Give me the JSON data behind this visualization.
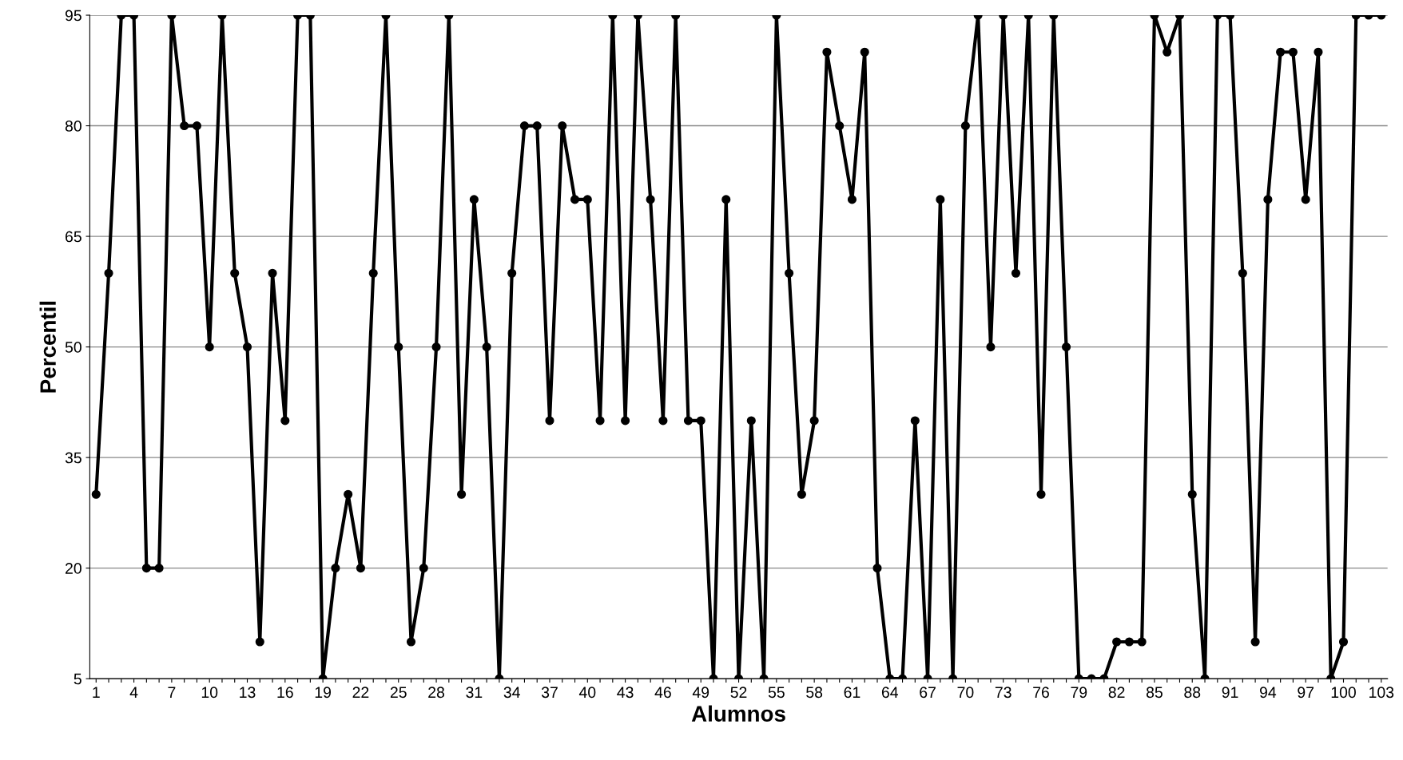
{
  "chart_data": {
    "type": "line",
    "xlabel": "Alumnos",
    "ylabel": "Percentil",
    "categories": [
      "1",
      null,
      null,
      "4",
      null,
      null,
      "7",
      null,
      null,
      "10",
      null,
      null,
      "13",
      null,
      null,
      "16",
      null,
      null,
      "19",
      null,
      null,
      "22",
      null,
      null,
      "25",
      null,
      null,
      "28",
      null,
      null,
      "31",
      null,
      null,
      "34",
      null,
      null,
      "37",
      null,
      null,
      "40",
      null,
      null,
      "43",
      null,
      null,
      "46",
      null,
      null,
      "49",
      null,
      null,
      "52",
      null,
      null,
      "55",
      null,
      null,
      "58",
      null,
      null,
      "61",
      null,
      null,
      "64",
      null,
      null,
      "67",
      null,
      null,
      "70",
      null,
      null,
      "73",
      null,
      null,
      "76",
      null,
      null,
      "79",
      null,
      null,
      "82",
      null,
      null,
      "85",
      null,
      null,
      "88",
      null,
      null,
      "91",
      null,
      null,
      "94",
      null,
      null,
      "97",
      null,
      null,
      "100",
      null,
      null,
      "103"
    ],
    "series": [
      {
        "color": "#000000",
        "values": [
          30,
          60,
          95,
          95,
          20,
          20,
          95,
          80,
          80,
          50,
          95,
          60,
          50,
          10,
          60,
          40,
          95,
          95,
          5,
          20,
          30,
          20,
          60,
          95,
          50,
          10,
          20,
          50,
          95,
          30,
          70,
          50,
          5,
          60,
          80,
          80,
          40,
          80,
          70,
          70,
          40,
          95,
          40,
          95,
          70,
          40,
          95,
          40,
          40,
          5,
          70,
          5,
          40,
          5,
          95,
          60,
          30,
          40,
          90,
          80,
          70,
          90,
          20,
          5,
          5,
          40,
          5,
          70,
          5,
          80,
          95,
          50,
          95,
          60,
          95,
          30,
          95,
          50,
          5,
          5,
          5,
          10,
          10,
          10,
          95,
          90,
          95,
          30,
          5,
          95,
          95,
          60,
          10,
          70,
          90,
          90,
          70,
          90,
          5,
          10,
          95,
          95,
          95
        ]
      }
    ],
    "ylim": [
      5,
      95
    ],
    "yticks": [
      5,
      20,
      35,
      50,
      65,
      80,
      95
    ],
    "grid": "y",
    "marker": "circle",
    "line_style": "solid",
    "legend": false
  }
}
